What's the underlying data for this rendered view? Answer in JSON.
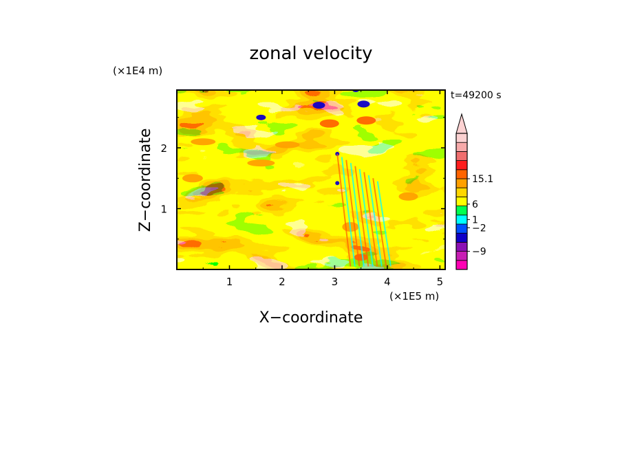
{
  "chart_data": {
    "type": "heatmap",
    "title": "zonal velocity",
    "xlabel": "X−coordinate",
    "ylabel": "Z−coordinate",
    "x_unit": "(×1E5 m)",
    "y_unit": "(×1E4 m)",
    "time_label": "t=49200 s",
    "xlim": [
      0,
      5.1
    ],
    "ylim": [
      0,
      2.95
    ],
    "x_ticks": [
      1,
      2,
      3,
      4,
      5
    ],
    "y_ticks": [
      1,
      2
    ],
    "colorbar": {
      "labels": [
        {
          "value": "15.1",
          "level": 10
        },
        {
          "value": "6",
          "level": 7.2
        },
        {
          "value": "1",
          "level": 5.5
        },
        {
          "value": "−2",
          "level": 4.6
        },
        {
          "value": "−9",
          "level": 2.0
        }
      ],
      "colors": [
        "#ff00b4",
        "#c81eb4",
        "#8c10b4",
        "#1000c8",
        "#0050ff",
        "#00ffff",
        "#00ff50",
        "#ffff00",
        "#ffd700",
        "#ffa000",
        "#ff6400",
        "#ff1e1e",
        "#f06e6e",
        "#f7aaaa",
        "#fcd2d2"
      ],
      "grid": "off"
    },
    "grid": "off"
  }
}
